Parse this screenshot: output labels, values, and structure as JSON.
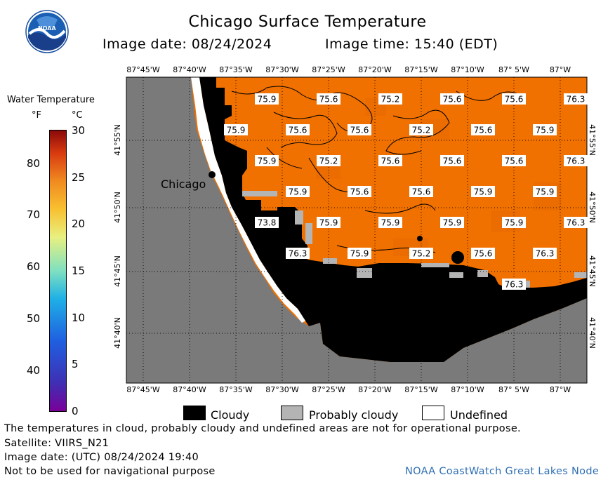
{
  "header": {
    "title": "Chicago Surface Temperature",
    "image_date": "Image date: 08/24/2024",
    "image_time": "Image time: 15:40 (EDT)"
  },
  "logo": {
    "text": "NOAA",
    "icon": "noaa-logo-icon"
  },
  "colorbar": {
    "title": "Water Temperature",
    "unit_f": "°F",
    "unit_c": "°C",
    "f_ticks": [
      "80",
      "70",
      "60",
      "50",
      "40"
    ],
    "c_ticks": [
      "30",
      "25",
      "20",
      "15",
      "10",
      "5",
      "0"
    ]
  },
  "map": {
    "lon_labels": [
      "87°45'W",
      "87°40'W",
      "87°35'W",
      "87°30'W",
      "87°25'W",
      "87°20'W",
      "87°15'W",
      "87°10'W",
      "87° 5'W",
      "87°W"
    ],
    "lat_labels": [
      "41°55'N",
      "41°50'N",
      "41°45'N",
      "41°40'N"
    ],
    "city": "Chicago",
    "temps": [
      {
        "v": "75.9",
        "c": 0,
        "r": 0
      },
      {
        "v": "75.6",
        "c": 1,
        "r": 0
      },
      {
        "v": "75.2",
        "c": 2,
        "r": 0
      },
      {
        "v": "75.6",
        "c": 3,
        "r": 0
      },
      {
        "v": "75.6",
        "c": 4,
        "r": 0
      },
      {
        "v": "76.3",
        "c": 5,
        "r": 0
      },
      {
        "v": "75.9",
        "c": 0,
        "r": 1
      },
      {
        "v": "75.6",
        "c": 1,
        "r": 1
      },
      {
        "v": "75.6",
        "c": 2,
        "r": 1
      },
      {
        "v": "75.2",
        "c": 3,
        "r": 1
      },
      {
        "v": "75.6",
        "c": 4,
        "r": 1
      },
      {
        "v": "75.9",
        "c": 5,
        "r": 1
      },
      {
        "v": "75.9",
        "c": 0,
        "r": 2
      },
      {
        "v": "75.2",
        "c": 1,
        "r": 2
      },
      {
        "v": "75.6",
        "c": 2,
        "r": 2
      },
      {
        "v": "75.6",
        "c": 3,
        "r": 2
      },
      {
        "v": "75.6",
        "c": 4,
        "r": 2
      },
      {
        "v": "76.3",
        "c": 5,
        "r": 2
      },
      {
        "v": "75.9",
        "c": 0,
        "r": 3
      },
      {
        "v": "75.6",
        "c": 1,
        "r": 3
      },
      {
        "v": "75.6",
        "c": 2,
        "r": 3
      },
      {
        "v": "75.9",
        "c": 3,
        "r": 3
      },
      {
        "v": "75.9",
        "c": 4,
        "r": 3
      },
      {
        "v": "73.8",
        "c": 0,
        "r": 4
      },
      {
        "v": "75.9",
        "c": 1,
        "r": 4
      },
      {
        "v": "75.9",
        "c": 2,
        "r": 4
      },
      {
        "v": "75.9",
        "c": 3,
        "r": 4
      },
      {
        "v": "75.9",
        "c": 4,
        "r": 4
      },
      {
        "v": "76.3",
        "c": 5,
        "r": 4
      },
      {
        "v": "76.3",
        "c": 0,
        "r": 5
      },
      {
        "v": "75.9",
        "c": 1,
        "r": 5
      },
      {
        "v": "75.2",
        "c": 2,
        "r": 5
      },
      {
        "v": "75.6",
        "c": 3,
        "r": 5
      },
      {
        "v": "76.3",
        "c": 4,
        "r": 5
      },
      {
        "v": "76.3",
        "c": 5,
        "r": 6
      }
    ]
  },
  "legend": {
    "cloudy": "Cloudy",
    "probably_cloudy": "Probably cloudy",
    "undefined": "Undefined"
  },
  "footer": {
    "disclaimer": "The temperatures in cloud, probably cloudy and undefined areas are not for operational purpose.",
    "satellite": "Satellite: VIIRS_N21",
    "utc_date": "Image date: (UTC) 08/24/2024  19:40",
    "nav_warning": "Not to be used for navigational purpose",
    "credit": "NOAA CoastWatch Great Lakes Node"
  },
  "colors": {
    "water": "#f07000",
    "land": "#7a7a7a",
    "cloudy": "#000000",
    "probably_cloudy": "#b4b4b4",
    "undefined": "#ffffff",
    "credit_text": "#2f6fb3"
  }
}
